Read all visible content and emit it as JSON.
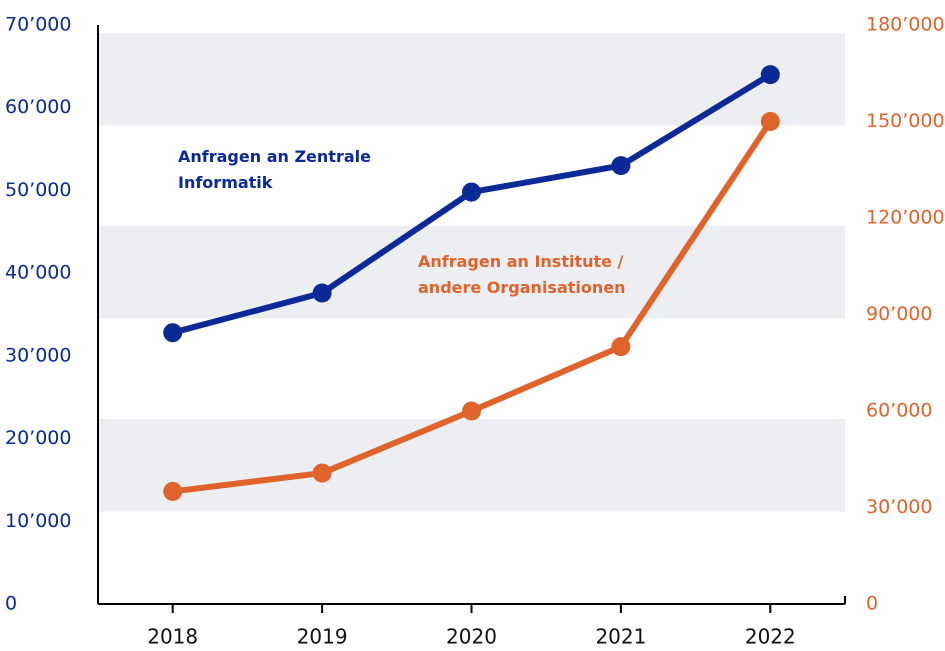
{
  "chart_data": {
    "type": "line",
    "categories": [
      "2018",
      "2019",
      "2020",
      "2021",
      "2022"
    ],
    "series": [
      {
        "name": "Anfragen an Zentrale Informatik",
        "color": "#0b2a98",
        "values": [
          32800,
          37600,
          49800,
          53000,
          64000
        ]
      },
      {
        "name": "Anfragen an Institute / andere Organisationen",
        "color": "#e0632b",
        "axis": "y2",
        "values": [
          35000,
          40700,
          60000,
          80000,
          150000
        ]
      }
    ],
    "ylim": [
      0,
      70000
    ],
    "yticks": [
      0,
      {
        "value": 10000,
        "label": "10’000"
      },
      {
        "value": 20000,
        "label": "20’000"
      },
      {
        "value": 30000,
        "label": "30’000"
      },
      {
        "value": 40000,
        "label": "40’000"
      },
      {
        "value": 50000,
        "label": "50’000"
      },
      {
        "value": 60000,
        "label": "60’000"
      },
      {
        "value": 70000,
        "label": "70’000"
      }
    ],
    "y2lim": [
      0,
      180000
    ],
    "y2ticks": [
      0,
      {
        "value": 30000,
        "label": "30’000"
      },
      {
        "value": 60000,
        "label": "60’000"
      },
      {
        "value": 90000,
        "label": "90’000"
      },
      {
        "value": 120000,
        "label": "120’000"
      },
      {
        "value": 150000,
        "label": "150’000"
      },
      {
        "value": 180000,
        "label": "180’000"
      }
    ],
    "grid": "bands-y2"
  }
}
